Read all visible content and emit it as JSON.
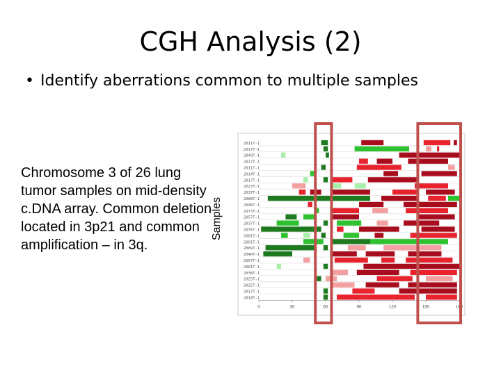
{
  "slide": {
    "title": "CGH Analysis (2)",
    "bullet": "Identify aberrations common to multiple samples",
    "caption": "Chromosome 3 of 26 lung tumor samples on mid-density c.DNA array. Common deletion located in 3p21 and common amplification – in 3q.",
    "y_axis_label": "Samples"
  },
  "chart_data": {
    "type": "heatmap",
    "title": "",
    "xlabel": "",
    "ylabel": "Samples",
    "xlim": [
      0,
      180
    ],
    "x_ticks": [
      0,
      30,
      60,
      90,
      120,
      150,
      180
    ],
    "x_tick_labels": [
      "0",
      "30",
      "60",
      "90",
      "120",
      "150",
      "180"
    ],
    "samples": [
      "2011T-1",
      "2017T-1",
      "2049T-1",
      "2027T-1",
      "2011T-1",
      "2014T-1",
      "2017T-1",
      "2023T-1",
      "2037T-1",
      "2088T-1",
      "2096T-1",
      "2073T-1",
      "2057T-1",
      "2037T-1",
      "2076T-1",
      "2081T-1",
      "2061T-1",
      "2089T-1",
      "2040T-1",
      "2067T-1",
      "2061T-1",
      "2038T-1",
      "2025T-1",
      "2025T-1",
      "2017T-1",
      "2018T-1"
    ],
    "colors": {
      "dark_green": "#1e7a1e",
      "green": "#2fc22f",
      "light_green": "#a8f0a8",
      "dark_red": "#a80d1d",
      "red": "#e8232e",
      "light_red": "#f5a0a0",
      "highlight_box": "#c0504d"
    },
    "segments": [
      [
        [
          56,
          62,
          "dark_green"
        ],
        [
          92,
          112,
          "dark_red"
        ],
        [
          148,
          172,
          "red"
        ],
        [
          175,
          178,
          "dark_red"
        ]
      ],
      [
        [
          58,
          62,
          "dark_green"
        ],
        [
          86,
          135,
          "green"
        ],
        [
          150,
          155,
          "light_red"
        ],
        [
          160,
          162,
          "red"
        ]
      ],
      [
        [
          20,
          24,
          "light_green"
        ],
        [
          60,
          63,
          "dark_green"
        ],
        [
          126,
          180,
          "dark_red"
        ]
      ],
      [
        [
          90,
          98,
          "red"
        ],
        [
          106,
          120,
          "dark_red"
        ],
        [
          134,
          170,
          "dark_red"
        ]
      ],
      [
        [
          56,
          60,
          "dark_green"
        ],
        [
          88,
          128,
          "red"
        ],
        [
          170,
          176,
          "light_red"
        ]
      ],
      [
        [
          46,
          50,
          "green"
        ],
        [
          112,
          125,
          "dark_red"
        ],
        [
          146,
          178,
          "dark_red"
        ]
      ],
      [
        [
          40,
          44,
          "light_green"
        ],
        [
          58,
          62,
          "dark_green"
        ],
        [
          64,
          84,
          "red"
        ],
        [
          98,
          142,
          "dark_red"
        ]
      ],
      [
        [
          30,
          42,
          "light_red"
        ],
        [
          66,
          74,
          "light_green"
        ],
        [
          86,
          96,
          "light_green"
        ],
        [
          140,
          170,
          "red"
        ]
      ],
      [
        [
          36,
          42,
          "red"
        ],
        [
          46,
          56,
          "dark_red"
        ],
        [
          66,
          100,
          "dark_red"
        ],
        [
          120,
          142,
          "red"
        ],
        [
          150,
          176,
          "dark_red"
        ]
      ],
      [
        [
          8,
          60,
          "dark_green"
        ],
        [
          60,
          100,
          "dark_green"
        ],
        [
          110,
          142,
          "dark_red"
        ],
        [
          152,
          168,
          "red"
        ],
        [
          170,
          180,
          "green"
        ]
      ],
      [
        [
          44,
          48,
          "red"
        ],
        [
          90,
          112,
          "dark_red"
        ],
        [
          130,
          178,
          "dark_red"
        ]
      ],
      [
        [
          50,
          54,
          "green"
        ],
        [
          64,
          90,
          "red"
        ],
        [
          102,
          116,
          "light_red"
        ],
        [
          132,
          170,
          "red"
        ]
      ],
      [
        [
          24,
          34,
          "dark_green"
        ],
        [
          40,
          50,
          "green"
        ],
        [
          64,
          90,
          "dark_red"
        ],
        [
          142,
          176,
          "dark_red"
        ]
      ],
      [
        [
          16,
          36,
          "green"
        ],
        [
          58,
          62,
          "dark_green"
        ],
        [
          70,
          92,
          "green"
        ],
        [
          106,
          116,
          "light_red"
        ],
        [
          130,
          162,
          "dark_red"
        ]
      ],
      [
        [
          2,
          56,
          "dark_green"
        ],
        [
          70,
          76,
          "red"
        ],
        [
          90,
          126,
          "dark_red"
        ],
        [
          146,
          176,
          "dark_red"
        ]
      ],
      [
        [
          20,
          26,
          "green"
        ],
        [
          40,
          46,
          "light_green"
        ],
        [
          56,
          60,
          "dark_green"
        ],
        [
          76,
          90,
          "green"
        ],
        [
          104,
          112,
          "dark_red"
        ],
        [
          136,
          178,
          "red"
        ]
      ],
      [
        [
          40,
          58,
          "green"
        ],
        [
          66,
          100,
          "dark_green"
        ],
        [
          100,
          170,
          "green"
        ]
      ],
      [
        [
          6,
          50,
          "dark_green"
        ],
        [
          58,
          62,
          "dark_green"
        ],
        [
          80,
          96,
          "light_red"
        ],
        [
          112,
          164,
          "light_red"
        ]
      ],
      [
        [
          4,
          30,
          "dark_green"
        ],
        [
          64,
          88,
          "dark_red"
        ],
        [
          96,
          122,
          "dark_red"
        ],
        [
          134,
          164,
          "dark_red"
        ]
      ],
      [
        [
          40,
          46,
          "light_red"
        ],
        [
          68,
          98,
          "red"
        ],
        [
          110,
          122,
          "red"
        ],
        [
          132,
          174,
          "red"
        ]
      ],
      [
        [
          16,
          20,
          "light_green"
        ],
        [
          58,
          62,
          "dark_green"
        ],
        [
          94,
          180,
          "dark_red"
        ]
      ],
      [
        [
          66,
          80,
          "light_red"
        ],
        [
          88,
          126,
          "dark_red"
        ],
        [
          136,
          178,
          "red"
        ]
      ],
      [
        [
          52,
          56,
          "dark_green"
        ],
        [
          60,
          70,
          "light_red"
        ],
        [
          106,
          138,
          "red"
        ],
        [
          150,
          174,
          "light_red"
        ]
      ],
      [
        [
          64,
          86,
          "light_red"
        ],
        [
          96,
          126,
          "dark_red"
        ],
        [
          134,
          178,
          "dark_red"
        ]
      ],
      [
        [
          58,
          62,
          "dark_green"
        ],
        [
          84,
          104,
          "red"
        ],
        [
          126,
          178,
          "dark_red"
        ]
      ],
      [
        [
          58,
          62,
          "dark_green"
        ],
        [
          70,
          96,
          "red"
        ],
        [
          96,
          140,
          "red"
        ],
        [
          150,
          178,
          "red"
        ]
      ]
    ],
    "highlight_regions": [
      [
        52,
        64
      ],
      [
        144,
        180
      ]
    ]
  }
}
